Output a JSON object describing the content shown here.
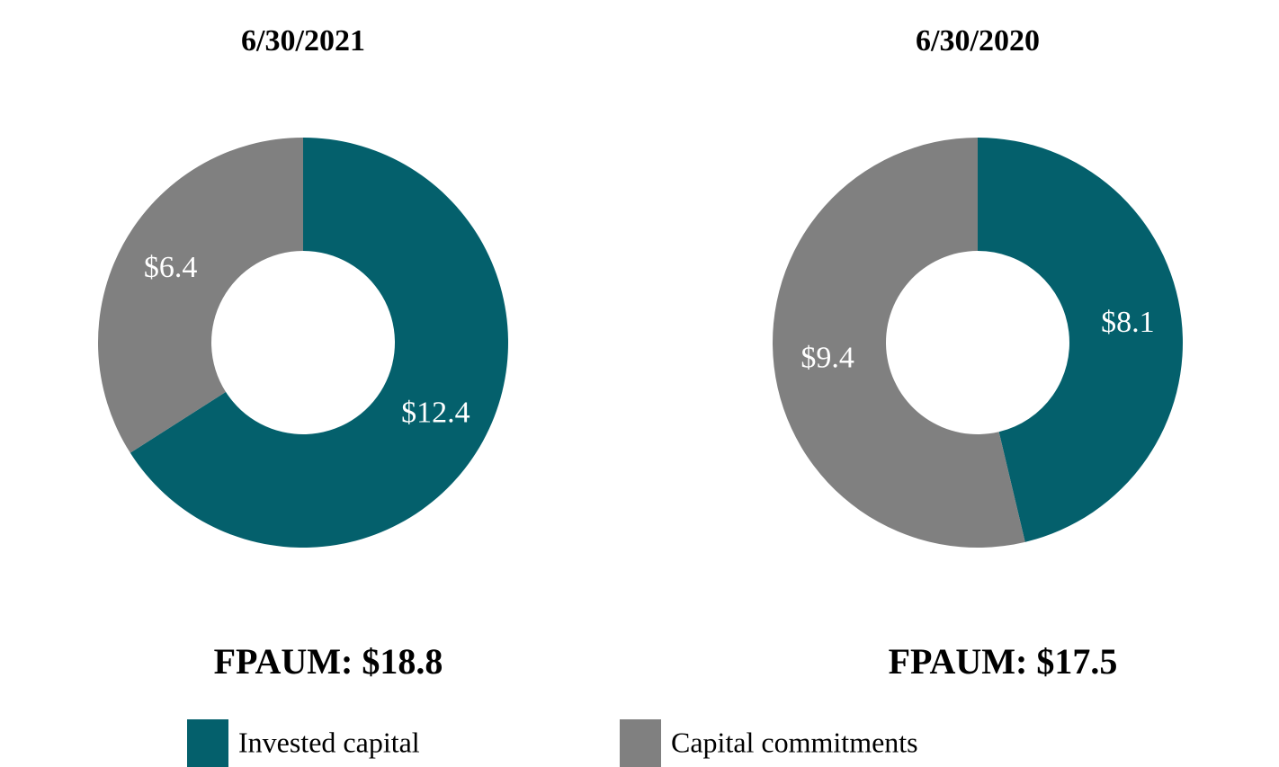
{
  "chart_data": [
    {
      "type": "pie",
      "title": "6/30/2021",
      "values": [
        12.4,
        6.4
      ],
      "value_labels": [
        "$12.4",
        "$6.4"
      ],
      "annotation": "FPAUM: $18.8"
    },
    {
      "type": "pie",
      "title": "6/30/2020",
      "values": [
        8.1,
        9.4
      ],
      "value_labels": [
        "$8.1",
        "$9.4"
      ],
      "annotation": "FPAUM: $17.5"
    }
  ],
  "legend": {
    "labels": [
      "Invested capital",
      "Capital commitments"
    ],
    "colors": [
      "#04606c",
      "#808080"
    ]
  }
}
